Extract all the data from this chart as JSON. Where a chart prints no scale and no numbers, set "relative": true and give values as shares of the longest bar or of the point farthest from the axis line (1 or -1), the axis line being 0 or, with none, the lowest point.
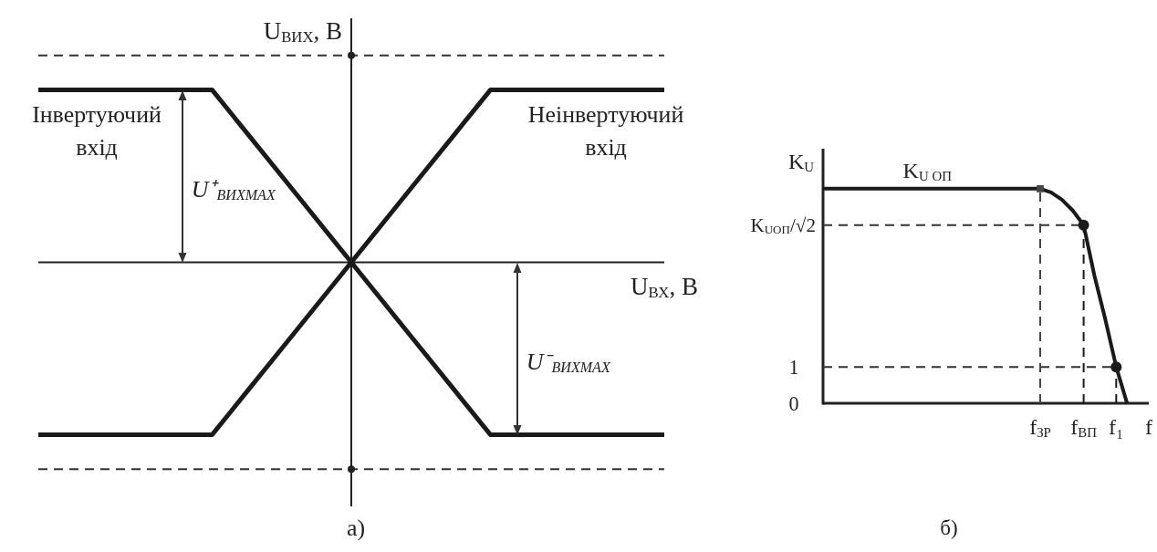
{
  "chart_data": [
    {
      "type": "line",
      "relative": true,
      "xlabel": "U$_{ВХ}$, В",
      "ylabel": "U$_{ВИХ}$, В",
      "categories": [
        null,
        null,
        null,
        null,
        null,
        null,
        null,
        null,
        null,
        null,
        null,
        null,
        null,
        null,
        null,
        null,
        null,
        null,
        null
      ],
      "series": [
        {
          "name": "Інвертуючий вхід",
          "color": "#1a1a1a",
          "values": [
            1,
            1,
            1,
            1,
            1,
            1,
            0.75,
            0.5,
            0.25,
            0,
            -0.25,
            -0.5,
            -0.75,
            -1,
            -1,
            -1,
            -1,
            -1,
            -1
          ]
        },
        {
          "name": "Неінвертуючий вхід",
          "color": "#1a1a1a",
          "values": [
            -1,
            -1,
            -1,
            -1,
            -1,
            -1,
            -0.75,
            -0.5,
            -0.25,
            0,
            0.25,
            0.5,
            0.75,
            1,
            1,
            1,
            1,
            1,
            1
          ]
        }
      ],
      "ref_lines": [
        {
          "axis": "y",
          "value": 1.2,
          "line_style": "dashed"
        },
        {
          "axis": "y",
          "value": -1.2,
          "line_style": "dashed"
        }
      ],
      "annotations": [
        "U⁺$_{ВИХMAX}$",
        "U⁻$_{ВИХMAX}$",
        "а)"
      ]
    },
    {
      "type": "line",
      "xlabel": "f",
      "ylabel": "K$_{U}$",
      "ylim": [
        0,
        7
      ],
      "yticks": [
        0,
        1
      ],
      "categories": [
        null,
        null,
        null,
        null,
        null,
        null,
        null,
        null,
        null,
        null,
        null,
        null,
        null,
        null,
        null,
        null,
        null,
        null,
        null,
        null,
        "f$_{ЗР}$",
        null,
        null,
        null,
        "f$_{ВП}$",
        null,
        null,
        "f₁",
        null,
        null,
        null
      ],
      "series": [
        {
          "color": "#1a1a1a",
          "values": [
            5.9,
            5.9,
            5.9,
            5.9,
            5.9,
            5.9,
            5.9,
            5.9,
            5.9,
            5.9,
            5.9,
            5.9,
            5.9,
            5.9,
            5.9,
            5.9,
            5.9,
            5.9,
            5.9,
            5.9,
            5.9,
            5.8,
            5.6,
            5.3,
            4.9,
            3.5,
            2.3,
            1,
            0,
            null,
            null
          ]
        },
        {
          "type": "lollipop",
          "marker": "square",
          "line_style": "dashed",
          "color": "#444444",
          "values": [
            null,
            null,
            null,
            null,
            null,
            null,
            null,
            null,
            null,
            null,
            null,
            null,
            null,
            null,
            null,
            null,
            null,
            null,
            null,
            null,
            5.9,
            null,
            null,
            null,
            null,
            null,
            null,
            null,
            null,
            null,
            null
          ]
        },
        {
          "type": "lollipop",
          "marker": "circle",
          "line_style": "dashed",
          "color": "#1a1a1a",
          "values": [
            null,
            null,
            null,
            null,
            null,
            null,
            null,
            null,
            null,
            null,
            null,
            null,
            null,
            null,
            null,
            null,
            null,
            null,
            null,
            null,
            null,
            null,
            null,
            null,
            4.9,
            null,
            null,
            1,
            null,
            null,
            null
          ]
        }
      ],
      "ref_lines": [
        {
          "axis": "y",
          "value": 4.9,
          "line_style": "dashed",
          "label": "K$_{UОП}$/√2"
        },
        {
          "axis": "y",
          "value": 1,
          "line_style": "dashed"
        }
      ],
      "annotations": [
        {
          "text": "K$_{U ОП}$",
          "y": 5.9
        },
        "б)"
      ]
    }
  ]
}
